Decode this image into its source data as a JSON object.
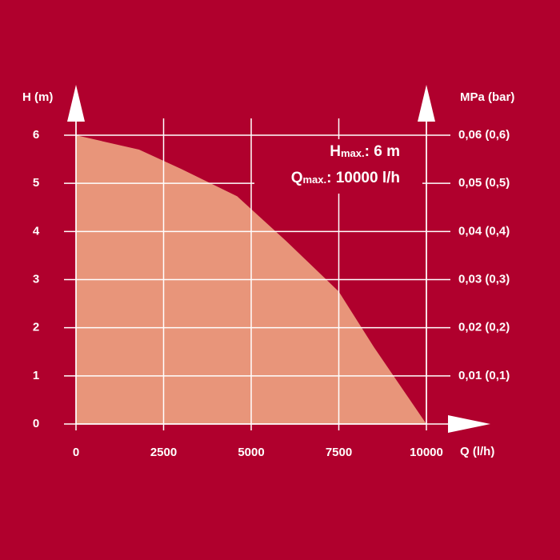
{
  "chart_data": {
    "type": "area",
    "y_axis_label": "H (m)",
    "y2_axis_label": "MPa (bar)",
    "x_axis_label": "Q (l/h)",
    "x": [
      0,
      1800,
      3000,
      4600,
      6000,
      7500,
      8500,
      10000
    ],
    "series": [
      {
        "values": [
          6,
          5.7,
          5.3,
          4.73,
          3.8,
          2.75,
          1.6,
          0
        ],
        "color": "#e8957a"
      }
    ],
    "xlim": [
      0,
      10000
    ],
    "xticks": [
      0,
      2500,
      5000,
      7500,
      10000
    ],
    "ylim": [
      0,
      6
    ],
    "yticks": [
      0,
      1,
      2,
      3,
      4,
      5,
      6
    ],
    "y2lim": [
      0,
      0.06
    ],
    "y2ticks": [
      {
        "value": 0.01,
        "label": "0,01 (0,1)"
      },
      {
        "value": 0.02,
        "label": "0,02 (0,2)"
      },
      {
        "value": 0.03,
        "label": "0,03 (0,3)"
      },
      {
        "value": 0.04,
        "label": "0,04 (0,4)"
      },
      {
        "value": 0.05,
        "label": "0,05 (0,5)"
      },
      {
        "value": 0.06,
        "label": "0,06 (0,6)"
      }
    ],
    "grid": true,
    "annotations": [
      {
        "main": "H",
        "sub": "max.",
        "rest": ": 6 m"
      },
      {
        "main": "Q",
        "sub": "max.",
        "rest": ": 10000 l/h"
      }
    ]
  }
}
